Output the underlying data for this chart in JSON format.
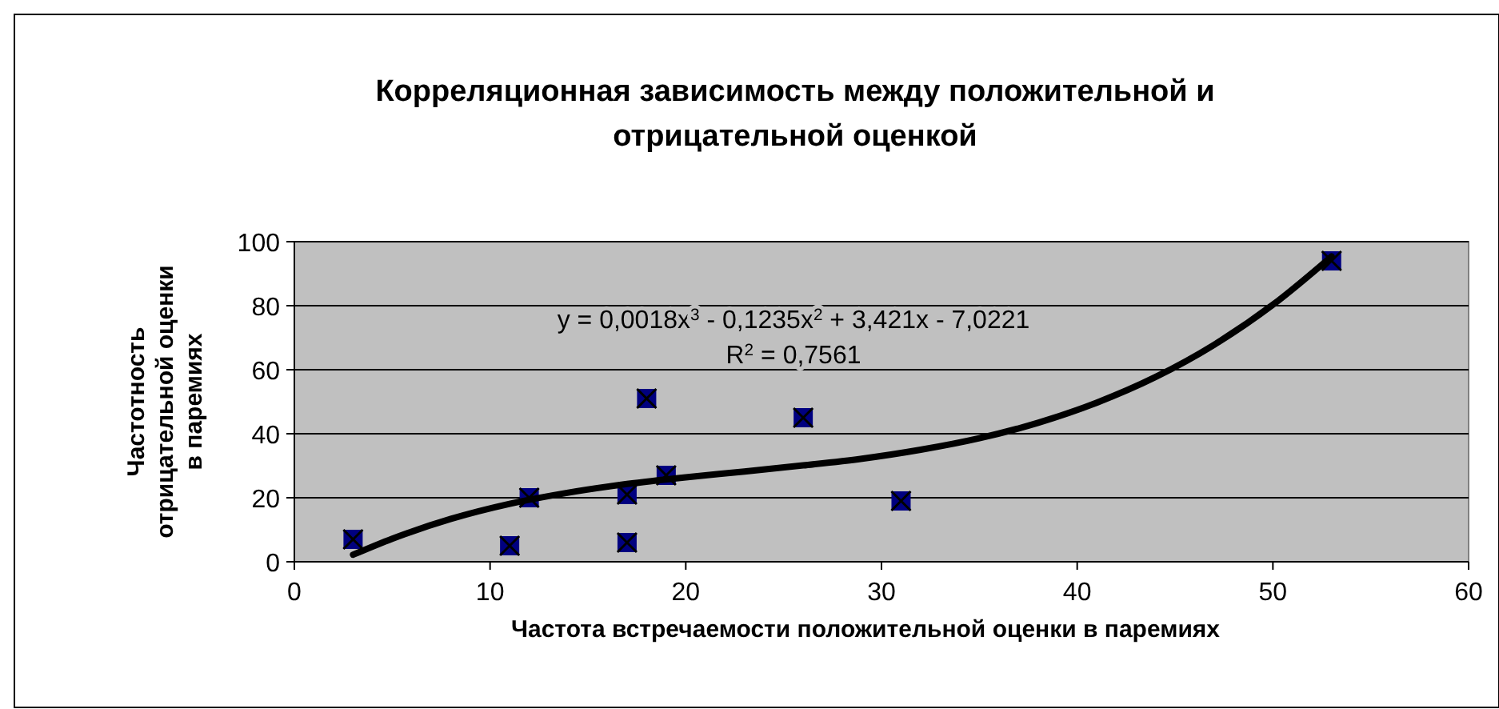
{
  "chart_data": {
    "type": "scatter",
    "title": "Корреляционная зависимость между положительной и\nотрицательной оценкой",
    "xlabel": "Частота встречаемости положительной оценки в паремиях",
    "ylabel": "Частотность\nотрицательной оценки\nв паремиях",
    "xlim": [
      0,
      60
    ],
    "xticks": [
      0,
      10,
      20,
      30,
      40,
      50,
      60
    ],
    "ylim": [
      0,
      100
    ],
    "yticks": [
      0,
      20,
      40,
      60,
      80,
      100
    ],
    "grid": "y",
    "annotations": [
      "y = 0,0018x$^{3}$ - 0,1235x$^{2}$ + 3,421x - 7,0221",
      "R$^{2}$ = 0,7561"
    ],
    "series": [
      {
        "marker": "square",
        "color": "#000080",
        "x": [
          3,
          11,
          12,
          17,
          17,
          18,
          19,
          26,
          31,
          53
        ],
        "values": [
          7,
          5,
          20,
          6,
          21,
          51,
          27,
          45,
          19,
          94
        ]
      },
      {
        "type": "line",
        "marker": "none",
        "color": "#000000",
        "line_style": "solid",
        "x": [
          3,
          5,
          8,
          11,
          14,
          17,
          20,
          23,
          26,
          29,
          32,
          35,
          38,
          41,
          44,
          47,
          50,
          53
        ],
        "values": [
          2.2,
          7.2,
          13.4,
          18.1,
          21.6,
          24.3,
          26.4,
          28.2,
          30.1,
          32.2,
          35.0,
          38.6,
          43.4,
          49.7,
          57.7,
          67.8,
          80.3,
          95.4
        ]
      }
    ]
  }
}
